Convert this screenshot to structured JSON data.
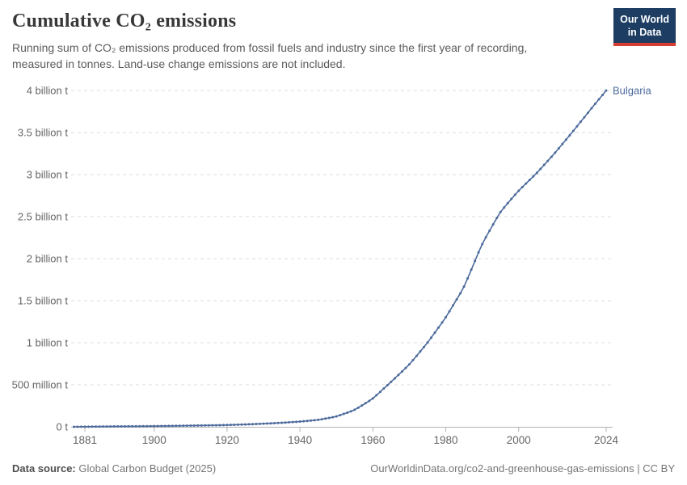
{
  "header": {
    "title": "Cumulative CO₂ emissions",
    "subtitle": "Running sum of CO₂ emissions produced from fossil fuels and industry since the first year of recording, measured in tonnes. Land-use change emissions are not included."
  },
  "logo": {
    "line1": "Our World",
    "line2": "in Data"
  },
  "colors": {
    "series": "#4C6A9C",
    "grid": "#dddddd",
    "axis": "#b3b3b3",
    "tick_label": "#666666",
    "logo_bg": "#1d3d63",
    "logo_accent": "#d73c32"
  },
  "chart_data": {
    "type": "line",
    "title": "Cumulative CO₂ emissions",
    "entity": "Bulgaria",
    "unit": "tonnes (cumulative CO₂, values below in million tonnes)",
    "grid": "dashed",
    "legend_position": "end-of-line-label",
    "x_range": [
      1878,
      2024
    ],
    "x_ticks": [
      1881,
      1900,
      1920,
      1940,
      1960,
      1980,
      2000,
      2024
    ],
    "y_range_million_t": [
      0,
      4000
    ],
    "y_ticks": [
      {
        "value": 0,
        "label": "0 t"
      },
      {
        "value": 500,
        "label": "500 million t"
      },
      {
        "value": 1000,
        "label": "1 billion t"
      },
      {
        "value": 1500,
        "label": "1.5 billion t"
      },
      {
        "value": 2000,
        "label": "2 billion t"
      },
      {
        "value": 2500,
        "label": "2.5 billion t"
      },
      {
        "value": 3000,
        "label": "3 billion t"
      },
      {
        "value": 3500,
        "label": "3.5 billion t"
      },
      {
        "value": 4000,
        "label": "4 billion t"
      }
    ],
    "series": [
      {
        "name": "Bulgaria",
        "color": "#4C6A9C",
        "marker": "dot-per-year",
        "points_year_million_t": [
          [
            1878,
            0
          ],
          [
            1880,
            1
          ],
          [
            1885,
            3
          ],
          [
            1890,
            5
          ],
          [
            1895,
            6
          ],
          [
            1900,
            8
          ],
          [
            1905,
            11
          ],
          [
            1910,
            14
          ],
          [
            1915,
            17
          ],
          [
            1920,
            21
          ],
          [
            1925,
            28
          ],
          [
            1930,
            37
          ],
          [
            1935,
            48
          ],
          [
            1940,
            62
          ],
          [
            1945,
            82
          ],
          [
            1950,
            122
          ],
          [
            1955,
            200
          ],
          [
            1960,
            335
          ],
          [
            1965,
            535
          ],
          [
            1970,
            740
          ],
          [
            1975,
            1000
          ],
          [
            1980,
            1300
          ],
          [
            1985,
            1660
          ],
          [
            1990,
            2180
          ],
          [
            1995,
            2560
          ],
          [
            2000,
            2810
          ],
          [
            2005,
            3020
          ],
          [
            2010,
            3260
          ],
          [
            2015,
            3520
          ],
          [
            2020,
            3790
          ],
          [
            2024,
            4000
          ]
        ]
      }
    ]
  },
  "footer": {
    "source_label": "Data source:",
    "source_value": "Global Carbon Budget (2025)",
    "attribution": "OurWorldinData.org/co2-and-greenhouse-gas-emissions | CC BY"
  }
}
